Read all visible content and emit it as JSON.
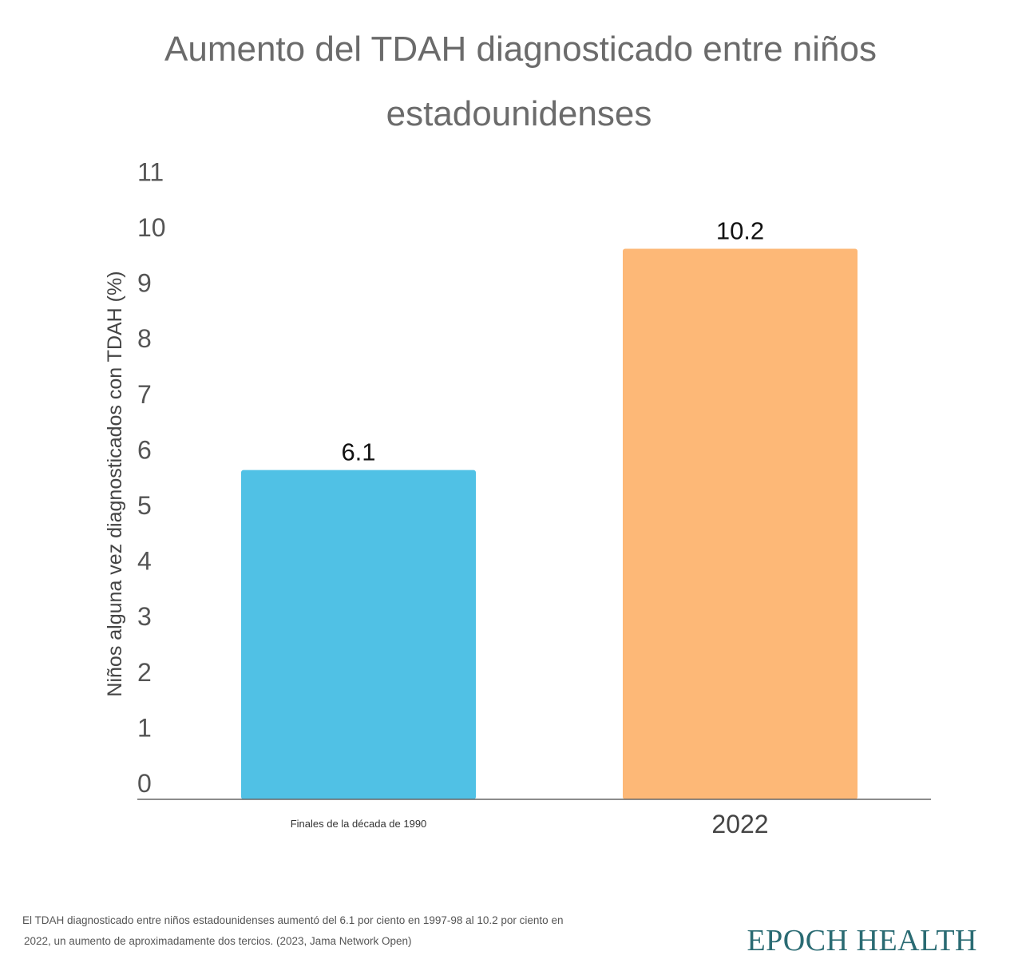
{
  "chart_data": {
    "type": "bar",
    "title_lines": [
      "Aumento del TDAH diagnosticado entre niños",
      "estadounidenses"
    ],
    "categories": [
      "Finales de la década de 1990",
      "2022"
    ],
    "values": [
      6.1,
      10.2
    ],
    "data_labels": [
      "6.1",
      "10.2"
    ],
    "colors": [
      "#50c1e5",
      "#fdb877"
    ],
    "ylabel": "Niños alguna vez diagnosticados con TDAH (%)",
    "xlabel": "",
    "ylim": [
      0,
      11
    ],
    "yticks": [
      "0",
      "1",
      "2",
      "3",
      "4",
      "5",
      "6",
      "7",
      "8",
      "9",
      "10",
      "11"
    ],
    "grid": false
  },
  "caption": {
    "line1": "El TDAH diagnosticado entre niños estadounidenses aumentó del 6.1 por ciento en 1997-98 al 10.2 por ciento en",
    "line2": "2022, un aumento de aproximadamente dos tercios. (2023, Jama Network Open)"
  },
  "brand": "EPOCH HEALTH"
}
